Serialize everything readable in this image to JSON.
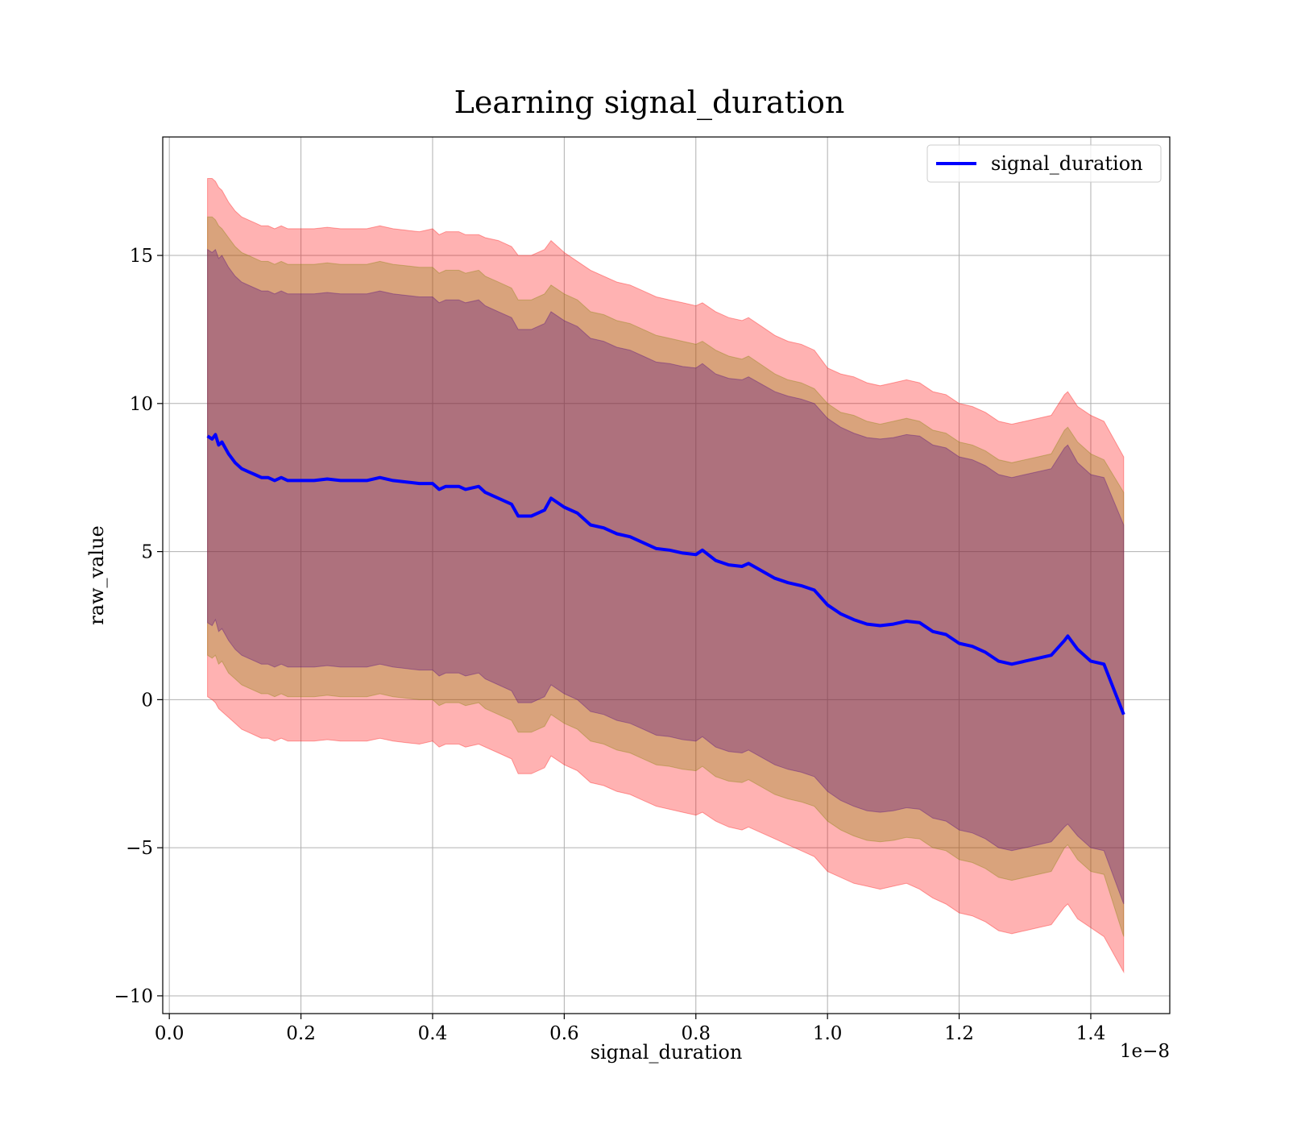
{
  "chart_data": {
    "type": "line",
    "title": "Learning signal_duration",
    "xlabel": "signal_duration",
    "ylabel": "raw_value",
    "x_offset_label": "1e−8",
    "xlim": [
      -0.01,
      1.52
    ],
    "ylim": [
      -10.6,
      19.0
    ],
    "grid": true,
    "legend_position": "top-right",
    "x_ticks": [
      0.0,
      0.2,
      0.4,
      0.6,
      0.8,
      1.0,
      1.2,
      1.4
    ],
    "x_tick_labels": [
      "0.0",
      "0.2",
      "0.4",
      "0.6",
      "0.8",
      "1.0",
      "1.2",
      "1.4"
    ],
    "y_ticks": [
      15,
      10,
      5,
      0,
      -5,
      -10
    ],
    "y_tick_labels": [
      "15",
      "10",
      "5",
      "0",
      "−5",
      "−10"
    ],
    "x": [
      0.058,
      0.065,
      0.07,
      0.075,
      0.08,
      0.09,
      0.1,
      0.11,
      0.12,
      0.13,
      0.14,
      0.15,
      0.16,
      0.17,
      0.18,
      0.2,
      0.22,
      0.24,
      0.26,
      0.28,
      0.3,
      0.32,
      0.34,
      0.36,
      0.38,
      0.4,
      0.41,
      0.42,
      0.44,
      0.45,
      0.47,
      0.48,
      0.5,
      0.52,
      0.53,
      0.55,
      0.57,
      0.58,
      0.6,
      0.62,
      0.64,
      0.66,
      0.68,
      0.7,
      0.72,
      0.74,
      0.76,
      0.78,
      0.8,
      0.81,
      0.83,
      0.85,
      0.87,
      0.88,
      0.9,
      0.92,
      0.94,
      0.96,
      0.98,
      1.0,
      1.02,
      1.04,
      1.06,
      1.08,
      1.1,
      1.12,
      1.14,
      1.16,
      1.18,
      1.2,
      1.22,
      1.24,
      1.26,
      1.28,
      1.3,
      1.32,
      1.34,
      1.36,
      1.365,
      1.38,
      1.4,
      1.42,
      1.45
    ],
    "series": [
      {
        "name": "signal_duration",
        "color": "#0000ff",
        "values": [
          8.9,
          8.8,
          8.95,
          8.6,
          8.7,
          8.3,
          8.0,
          7.8,
          7.7,
          7.6,
          7.5,
          7.5,
          7.4,
          7.5,
          7.4,
          7.4,
          7.4,
          7.45,
          7.4,
          7.4,
          7.4,
          7.5,
          7.4,
          7.35,
          7.3,
          7.3,
          7.1,
          7.2,
          7.2,
          7.1,
          7.2,
          7.0,
          6.8,
          6.6,
          6.2,
          6.2,
          6.4,
          6.8,
          6.5,
          6.3,
          5.9,
          5.8,
          5.6,
          5.5,
          5.3,
          5.1,
          5.05,
          4.95,
          4.9,
          5.05,
          4.7,
          4.55,
          4.5,
          4.6,
          4.35,
          4.1,
          3.95,
          3.85,
          3.7,
          3.2,
          2.9,
          2.7,
          2.55,
          2.5,
          2.55,
          2.65,
          2.6,
          2.3,
          2.2,
          1.9,
          1.8,
          1.6,
          1.3,
          1.2,
          1.3,
          1.4,
          1.5,
          2.0,
          2.15,
          1.7,
          1.3,
          1.2,
          -0.5
        ]
      }
    ],
    "bands": [
      {
        "name": "outer-band",
        "color": "#ff0000",
        "opacity": 0.3,
        "upper": [
          17.6,
          17.6,
          17.5,
          17.3,
          17.2,
          16.8,
          16.5,
          16.3,
          16.2,
          16.1,
          16.0,
          16.0,
          15.9,
          16.0,
          15.9,
          15.9,
          15.9,
          15.95,
          15.9,
          15.9,
          15.9,
          16.0,
          15.9,
          15.85,
          15.8,
          15.9,
          15.7,
          15.8,
          15.8,
          15.7,
          15.7,
          15.6,
          15.5,
          15.3,
          15.0,
          15.0,
          15.2,
          15.5,
          15.1,
          14.8,
          14.5,
          14.3,
          14.1,
          14.0,
          13.8,
          13.6,
          13.5,
          13.4,
          13.3,
          13.4,
          13.1,
          12.9,
          12.8,
          12.9,
          12.6,
          12.3,
          12.1,
          12.0,
          11.8,
          11.2,
          11.0,
          10.9,
          10.7,
          10.6,
          10.7,
          10.8,
          10.7,
          10.4,
          10.3,
          10.0,
          9.9,
          9.7,
          9.4,
          9.3,
          9.4,
          9.5,
          9.6,
          10.3,
          10.4,
          9.9,
          9.6,
          9.4,
          8.2
        ],
        "lower": [
          0.1,
          0.0,
          -0.1,
          -0.3,
          -0.4,
          -0.6,
          -0.8,
          -1.0,
          -1.1,
          -1.2,
          -1.3,
          -1.3,
          -1.4,
          -1.3,
          -1.4,
          -1.4,
          -1.4,
          -1.35,
          -1.4,
          -1.4,
          -1.4,
          -1.3,
          -1.4,
          -1.45,
          -1.5,
          -1.4,
          -1.6,
          -1.5,
          -1.5,
          -1.6,
          -1.5,
          -1.6,
          -1.8,
          -2.0,
          -2.5,
          -2.5,
          -2.3,
          -1.9,
          -2.2,
          -2.4,
          -2.8,
          -2.9,
          -3.1,
          -3.2,
          -3.4,
          -3.6,
          -3.7,
          -3.8,
          -3.9,
          -3.8,
          -4.1,
          -4.3,
          -4.4,
          -4.3,
          -4.5,
          -4.7,
          -4.9,
          -5.1,
          -5.3,
          -5.8,
          -6.0,
          -6.2,
          -6.3,
          -6.4,
          -6.3,
          -6.2,
          -6.4,
          -6.7,
          -6.9,
          -7.2,
          -7.3,
          -7.5,
          -7.8,
          -7.9,
          -7.8,
          -7.7,
          -7.6,
          -7.0,
          -6.9,
          -7.4,
          -7.7,
          -8.0,
          -9.2
        ]
      },
      {
        "name": "middle-band",
        "color": "#808000",
        "opacity": 0.3,
        "upper": [
          16.3,
          16.3,
          16.2,
          16.0,
          15.9,
          15.6,
          15.3,
          15.1,
          15.0,
          14.9,
          14.8,
          14.8,
          14.7,
          14.8,
          14.7,
          14.7,
          14.7,
          14.75,
          14.7,
          14.7,
          14.7,
          14.8,
          14.7,
          14.65,
          14.6,
          14.6,
          14.4,
          14.5,
          14.5,
          14.4,
          14.5,
          14.3,
          14.1,
          13.9,
          13.5,
          13.5,
          13.7,
          14.0,
          13.7,
          13.5,
          13.1,
          13.0,
          12.8,
          12.7,
          12.5,
          12.3,
          12.2,
          12.1,
          12.0,
          12.1,
          11.8,
          11.6,
          11.5,
          11.6,
          11.3,
          11.0,
          10.8,
          10.7,
          10.5,
          10.0,
          9.7,
          9.6,
          9.4,
          9.3,
          9.4,
          9.5,
          9.4,
          9.1,
          9.0,
          8.7,
          8.6,
          8.4,
          8.1,
          8.0,
          8.1,
          8.2,
          8.3,
          9.1,
          9.2,
          8.7,
          8.3,
          8.1,
          7.0
        ],
        "lower": [
          1.5,
          1.4,
          1.5,
          1.2,
          1.3,
          0.9,
          0.7,
          0.5,
          0.4,
          0.3,
          0.2,
          0.2,
          0.1,
          0.2,
          0.1,
          0.1,
          0.1,
          0.15,
          0.1,
          0.1,
          0.1,
          0.2,
          0.1,
          0.05,
          0.0,
          0.0,
          -0.2,
          -0.1,
          -0.1,
          -0.2,
          -0.1,
          -0.3,
          -0.5,
          -0.7,
          -1.1,
          -1.1,
          -0.9,
          -0.5,
          -0.8,
          -1.0,
          -1.4,
          -1.5,
          -1.7,
          -1.8,
          -2.0,
          -2.2,
          -2.25,
          -2.35,
          -2.4,
          -2.25,
          -2.6,
          -2.75,
          -2.8,
          -2.7,
          -2.95,
          -3.2,
          -3.35,
          -3.45,
          -3.6,
          -4.1,
          -4.4,
          -4.6,
          -4.75,
          -4.8,
          -4.75,
          -4.65,
          -4.7,
          -5.0,
          -5.1,
          -5.4,
          -5.5,
          -5.7,
          -6.0,
          -6.1,
          -6.0,
          -5.9,
          -5.8,
          -5.0,
          -4.9,
          -5.4,
          -5.8,
          -5.9,
          -8.0
        ]
      },
      {
        "name": "inner-band",
        "color": "#4b0082",
        "opacity": 0.3,
        "upper": [
          15.2,
          15.1,
          15.2,
          14.9,
          15.0,
          14.6,
          14.3,
          14.1,
          14.0,
          13.9,
          13.8,
          13.8,
          13.7,
          13.8,
          13.7,
          13.7,
          13.7,
          13.75,
          13.7,
          13.7,
          13.7,
          13.8,
          13.7,
          13.65,
          13.6,
          13.6,
          13.4,
          13.5,
          13.5,
          13.4,
          13.5,
          13.3,
          13.1,
          12.9,
          12.5,
          12.5,
          12.7,
          13.1,
          12.8,
          12.6,
          12.2,
          12.1,
          11.9,
          11.8,
          11.6,
          11.4,
          11.35,
          11.25,
          11.2,
          11.35,
          11.0,
          10.85,
          10.8,
          10.9,
          10.65,
          10.4,
          10.25,
          10.15,
          10.0,
          9.5,
          9.2,
          9.0,
          8.85,
          8.8,
          8.85,
          8.95,
          8.9,
          8.6,
          8.5,
          8.2,
          8.1,
          7.9,
          7.6,
          7.5,
          7.6,
          7.7,
          7.8,
          8.5,
          8.6,
          8.0,
          7.6,
          7.5,
          5.9
        ],
        "lower": [
          2.6,
          2.5,
          2.7,
          2.3,
          2.4,
          2.0,
          1.7,
          1.5,
          1.4,
          1.3,
          1.2,
          1.2,
          1.1,
          1.2,
          1.1,
          1.1,
          1.1,
          1.15,
          1.1,
          1.1,
          1.1,
          1.2,
          1.1,
          1.05,
          1.0,
          1.0,
          0.8,
          0.9,
          0.9,
          0.8,
          0.9,
          0.7,
          0.5,
          0.3,
          -0.1,
          -0.1,
          0.1,
          0.5,
          0.2,
          0.0,
          -0.4,
          -0.5,
          -0.7,
          -0.8,
          -1.0,
          -1.2,
          -1.25,
          -1.35,
          -1.4,
          -1.25,
          -1.6,
          -1.75,
          -1.8,
          -1.7,
          -1.95,
          -2.2,
          -2.35,
          -2.45,
          -2.6,
          -3.1,
          -3.4,
          -3.6,
          -3.75,
          -3.8,
          -3.75,
          -3.65,
          -3.7,
          -4.0,
          -4.1,
          -4.4,
          -4.5,
          -4.7,
          -5.0,
          -5.1,
          -5.0,
          -4.9,
          -4.8,
          -4.3,
          -4.2,
          -4.6,
          -5.0,
          -5.1,
          -6.9
        ]
      }
    ]
  }
}
